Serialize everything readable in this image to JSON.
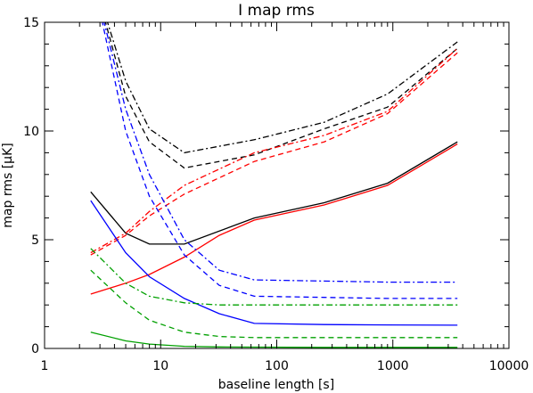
{
  "chart_data": {
    "type": "line",
    "title": "I map rms",
    "xlabel": "baseline length [s]",
    "ylabel": "map rms [μK]",
    "xscale": "log",
    "xlim": [
      1,
      10000
    ],
    "ylim": [
      0,
      15
    ],
    "grid": false,
    "x_ticks": [
      {
        "value": 1,
        "label": "1"
      },
      {
        "value": 10,
        "label": "10"
      },
      {
        "value": 100,
        "label": "100"
      },
      {
        "value": 1000,
        "label": "1000"
      },
      {
        "value": 10000,
        "label": "10000"
      }
    ],
    "y_ticks": [
      {
        "value": 0,
        "label": "0"
      },
      {
        "value": 5,
        "label": "5"
      },
      {
        "value": 10,
        "label": "10"
      },
      {
        "value": 15,
        "label": "15"
      }
    ],
    "series": [
      {
        "color": "#000000",
        "dash": "dashdot",
        "x": [
          2.5,
          5,
          8,
          16,
          64,
          256,
          900,
          3600
        ],
        "y": [
          17.5,
          12.3,
          10.1,
          9.0,
          9.6,
          10.4,
          11.7,
          14.1
        ]
      },
      {
        "color": "#000000",
        "dash": "dash",
        "x": [
          2.5,
          5,
          8,
          16,
          64,
          256,
          900,
          3600
        ],
        "y": [
          17.5,
          11.6,
          9.5,
          8.3,
          8.9,
          10.1,
          11.1,
          13.8
        ]
      },
      {
        "color": "#000000",
        "dash": "solid",
        "x": [
          2.5,
          5,
          8,
          16,
          64,
          256,
          900,
          3600
        ],
        "y": [
          7.2,
          5.3,
          4.8,
          4.8,
          6.0,
          6.7,
          7.6,
          9.5
        ]
      },
      {
        "color": "#ff0000",
        "dash": "dashdot",
        "x": [
          2.5,
          5,
          8,
          16,
          64,
          256,
          900,
          3600
        ],
        "y": [
          4.4,
          5.3,
          6.3,
          7.5,
          9.0,
          9.8,
          10.9,
          13.8
        ]
      },
      {
        "color": "#ff0000",
        "dash": "dash",
        "x": [
          2.5,
          5,
          8,
          16,
          64,
          256,
          900,
          3600
        ],
        "y": [
          4.3,
          5.2,
          6.1,
          7.1,
          8.6,
          9.5,
          10.8,
          13.6
        ]
      },
      {
        "color": "#ff0000",
        "dash": "solid",
        "x": [
          2.5,
          5,
          8,
          16,
          32,
          64,
          256,
          900,
          3600
        ],
        "y": [
          2.5,
          3.0,
          3.4,
          4.2,
          5.2,
          5.9,
          6.6,
          7.5,
          9.4
        ]
      },
      {
        "color": "#0000ff",
        "dash": "dashdot",
        "x": [
          2.5,
          5,
          8,
          16,
          32,
          64,
          256,
          900,
          3600
        ],
        "y": [
          17.5,
          11.0,
          8.0,
          5.0,
          3.6,
          3.15,
          3.1,
          3.05,
          3.05
        ]
      },
      {
        "color": "#0000ff",
        "dash": "dash",
        "x": [
          2.5,
          5,
          8,
          16,
          32,
          64,
          256,
          900,
          3600
        ],
        "y": [
          17.5,
          10.0,
          7.0,
          4.3,
          2.9,
          2.4,
          2.35,
          2.3,
          2.3
        ]
      },
      {
        "color": "#0000ff",
        "dash": "solid",
        "x": [
          2.5,
          5,
          8,
          16,
          32,
          64,
          256,
          900,
          3600
        ],
        "y": [
          6.8,
          4.4,
          3.3,
          2.3,
          1.6,
          1.15,
          1.1,
          1.08,
          1.07
        ]
      },
      {
        "color": "#00a000",
        "dash": "dashdot",
        "x": [
          2.5,
          5,
          8,
          16,
          32,
          64,
          256,
          900,
          3600
        ],
        "y": [
          4.6,
          3.0,
          2.4,
          2.1,
          2.0,
          2.0,
          2.0,
          2.0,
          2.0
        ]
      },
      {
        "color": "#00a000",
        "dash": "dash",
        "x": [
          2.5,
          5,
          8,
          16,
          32,
          64,
          256,
          900,
          3600
        ],
        "y": [
          3.6,
          2.1,
          1.3,
          0.75,
          0.55,
          0.5,
          0.5,
          0.5,
          0.5
        ]
      },
      {
        "color": "#00a000",
        "dash": "solid",
        "x": [
          2.5,
          5,
          8,
          16,
          32,
          64,
          256,
          900,
          3600
        ],
        "y": [
          0.75,
          0.35,
          0.2,
          0.1,
          0.07,
          0.06,
          0.05,
          0.05,
          0.05
        ]
      }
    ]
  }
}
